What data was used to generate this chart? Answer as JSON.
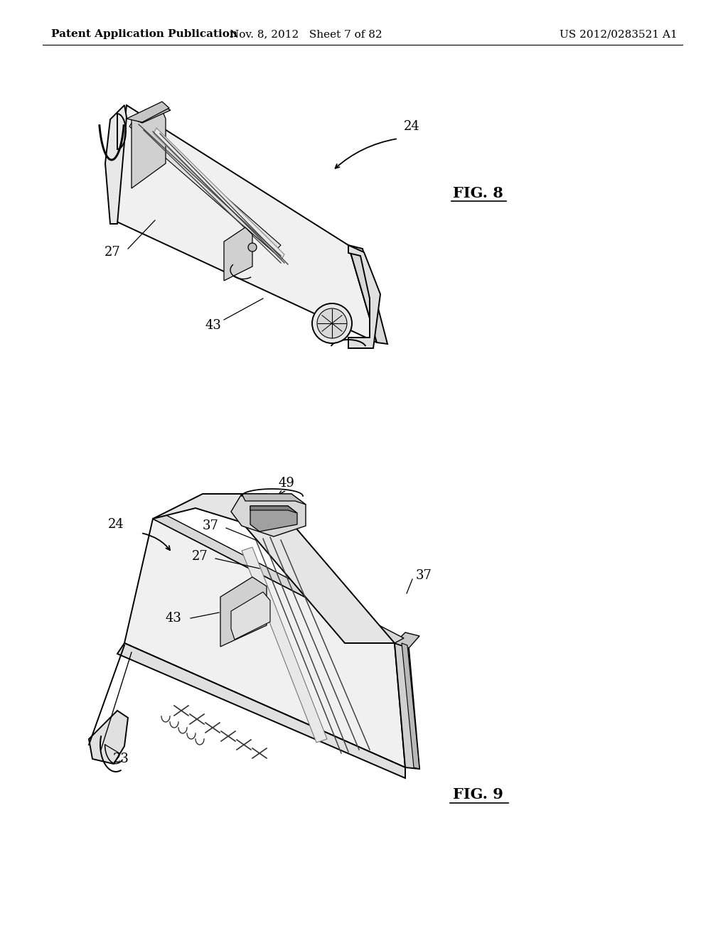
{
  "background_color": "#ffffff",
  "header_left": "Patent Application Publication",
  "header_center": "Nov. 8, 2012   Sheet 7 of 82",
  "header_right": "US 2012/0283521 A1",
  "fig8_label": "FIG. 8",
  "fig9_label": "FIG. 9",
  "header_fontsize": 11,
  "figlabel_fontsize": 15,
  "ref_fontsize": 13,
  "line_color": "#000000",
  "fill_light": "#f5f5f5",
  "fill_mid": "#e0e0e0",
  "fill_dark": "#c8c8c8"
}
